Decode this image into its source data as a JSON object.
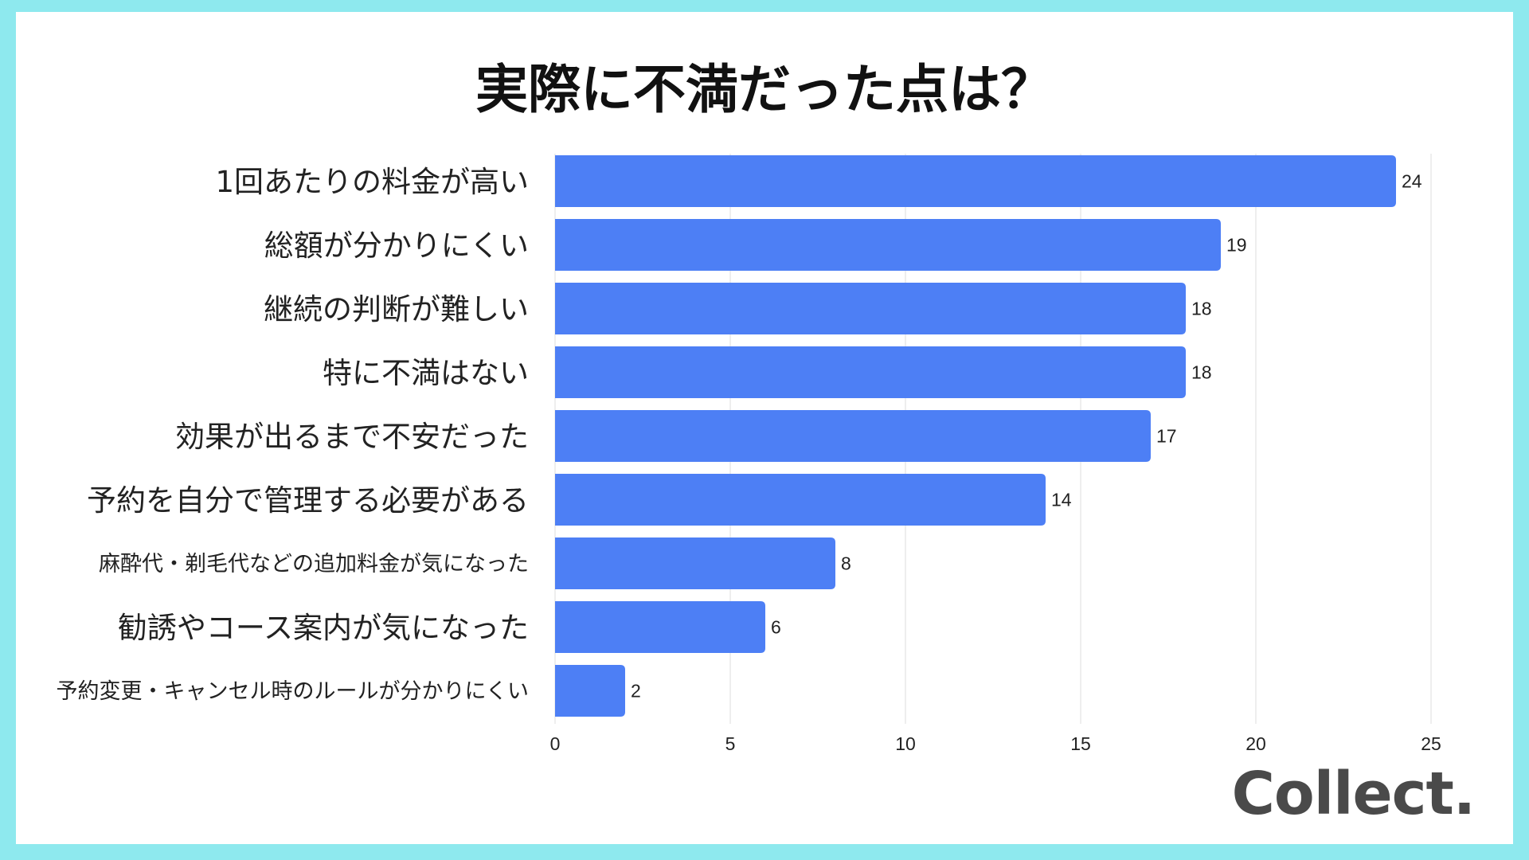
{
  "title": "実際に不満だった点は？",
  "logo": "Collect.",
  "colors": {
    "background": "#8ee9ee",
    "card": "#ffffff",
    "bar": "#4d7ff5",
    "grid": "#dddddd",
    "text": "#222222"
  },
  "chart_data": {
    "type": "bar",
    "orientation": "horizontal",
    "title": "実際に不満だった点は？",
    "categories": [
      "1回あたりの料金が高い",
      "総額が分かりにくい",
      "継続の判断が難しい",
      "特に不満はない",
      "効果が出るまで不安だった",
      "予約を自分で管理する必要がある",
      "麻酔代・剃毛代などの追加料金が気になった",
      "勧誘やコース案内が気になった",
      "予約変更・キャンセル時のルールが分かりにくい"
    ],
    "values": [
      24,
      19,
      18,
      18,
      17,
      14,
      8,
      6,
      2
    ],
    "xlim": [
      0,
      25
    ],
    "xticks": [
      0,
      5,
      10,
      15,
      20,
      25
    ],
    "grid": true,
    "data_labels": true
  }
}
